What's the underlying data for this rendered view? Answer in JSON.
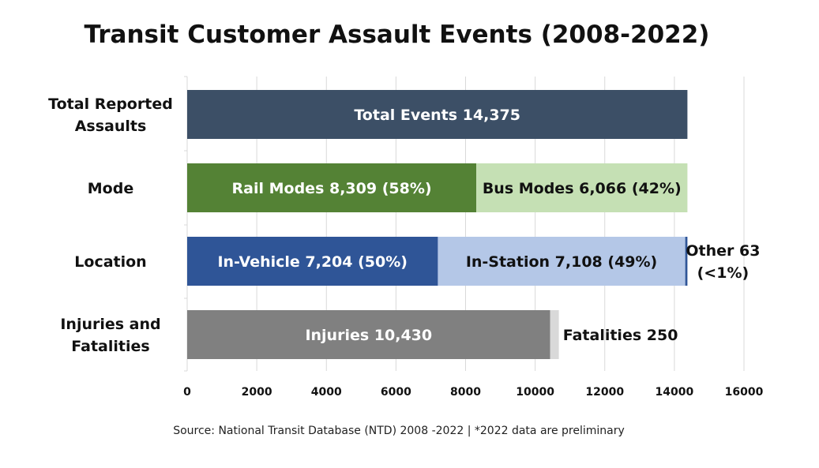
{
  "chart_data": {
    "type": "bar",
    "orientation": "horizontal",
    "stacked": true,
    "title": "Transit Customer Assault Events (2008-2022)",
    "source": "Source: National Transit Database (NTD) 2008 -2022 | *2022 data are preliminary",
    "xlim": [
      0,
      16000
    ],
    "xticks": [
      "0",
      "2000",
      "4000",
      "6000",
      "8000",
      "10000",
      "12000",
      "14000",
      "16000"
    ],
    "grid": true,
    "categories": [
      {
        "label_lines": [
          "Total Reported",
          "Assaults"
        ],
        "segments": [
          {
            "value": 14375,
            "label": "Total Events 14,375",
            "color": "#3c4f66",
            "text_color": "#ffffff",
            "label_placement": "inside"
          }
        ]
      },
      {
        "label_lines": [
          "Mode"
        ],
        "segments": [
          {
            "value": 8309,
            "label": "Rail Modes 8,309 (58%)",
            "color": "#548235",
            "text_color": "#ffffff",
            "label_placement": "inside"
          },
          {
            "value": 6066,
            "label": "Bus Modes 6,066 (42%)",
            "color": "#c5e0b4",
            "text_color": "#111111",
            "label_placement": "inside"
          }
        ]
      },
      {
        "label_lines": [
          "Location"
        ],
        "segments": [
          {
            "value": 7204,
            "label": "In-Vehicle 7,204 (50%)",
            "color": "#2f5597",
            "text_color": "#ffffff",
            "label_placement": "inside"
          },
          {
            "value": 7108,
            "label": "In-Station 7,108 (49%)",
            "color": "#b4c7e7",
            "text_color": "#111111",
            "label_placement": "inside"
          },
          {
            "value": 63,
            "label_lines": [
              "Other 63",
              "(<1%)"
            ],
            "color": "#2f5597",
            "text_color": "#111111",
            "label_placement": "outside"
          }
        ]
      },
      {
        "label_lines": [
          "Injuries and",
          "Fatalities"
        ],
        "segments": [
          {
            "value": 10430,
            "label": "Injuries 10,430",
            "color": "#808080",
            "text_color": "#ffffff",
            "label_placement": "inside"
          },
          {
            "value": 250,
            "label": "Fatalities 250",
            "color": "#d9d9d9",
            "text_color": "#111111",
            "label_placement": "outside"
          }
        ]
      }
    ]
  }
}
